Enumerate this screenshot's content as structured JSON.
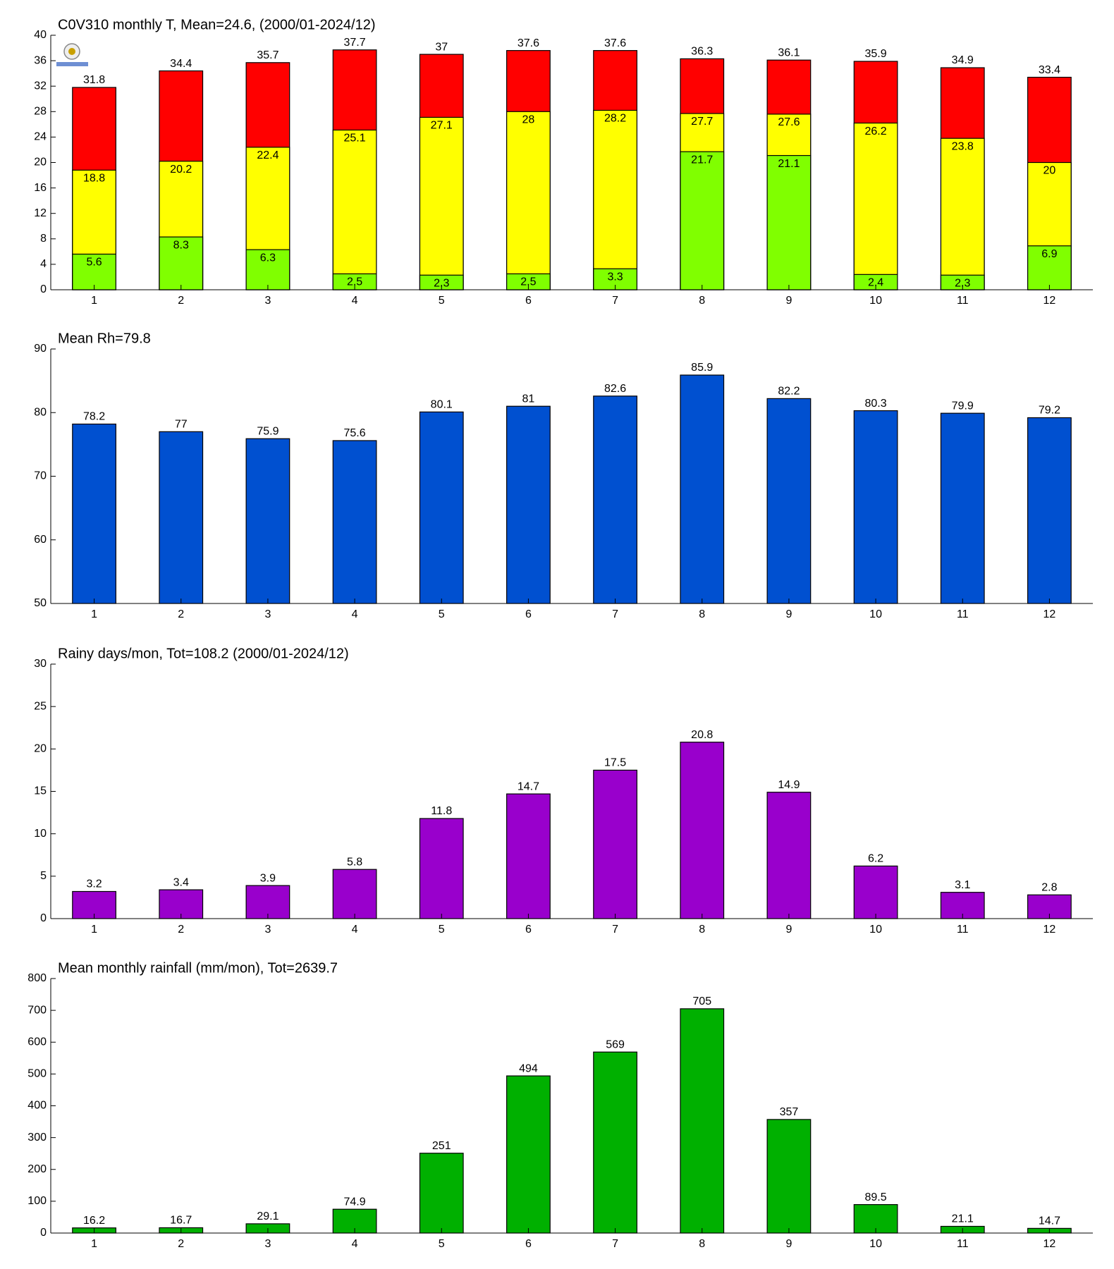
{
  "chart_data": [
    {
      "type": "bar",
      "barmode": "overlay",
      "title": "C0V310 monthly T, Mean=24.6, (2000/01-2024/12)",
      "categories": [
        "1",
        "2",
        "3",
        "4",
        "5",
        "6",
        "7",
        "8",
        "9",
        "10",
        "11",
        "12"
      ],
      "series": [
        {
          "color": "#ff0000",
          "values": [
            31.8,
            34.4,
            35.7,
            37.7,
            37,
            37.6,
            37.6,
            36.3,
            36.1,
            35.9,
            34.9,
            33.4
          ]
        },
        {
          "color": "#ffff00",
          "values": [
            18.8,
            20.2,
            22.4,
            25.1,
            27.1,
            28,
            28.2,
            27.7,
            27.6,
            26.2,
            23.8,
            20
          ]
        },
        {
          "color": "#80ff00",
          "values": [
            5.6,
            8.3,
            6.3,
            2.5,
            2.3,
            2.5,
            3.3,
            21.7,
            21.1,
            2.4,
            2.3,
            6.9
          ]
        }
      ],
      "ylim": [
        0,
        40
      ],
      "yticks": [
        0,
        4,
        8,
        12,
        16,
        20,
        24,
        28,
        32,
        36,
        40
      ]
    },
    {
      "type": "bar",
      "title": "Mean Rh=79.8",
      "categories": [
        "1",
        "2",
        "3",
        "4",
        "5",
        "6",
        "7",
        "8",
        "9",
        "10",
        "11",
        "12"
      ],
      "series": [
        {
          "color": "#0050d0",
          "values": [
            78.2,
            77,
            75.9,
            75.6,
            80.1,
            81,
            82.6,
            85.9,
            82.2,
            80.3,
            79.9,
            79.2
          ]
        }
      ],
      "ylim": [
        50,
        90
      ],
      "yticks": [
        50,
        60,
        70,
        80,
        90
      ]
    },
    {
      "type": "bar",
      "title": "Rainy days/mon, Tot=108.2 (2000/01-2024/12)",
      "categories": [
        "1",
        "2",
        "3",
        "4",
        "5",
        "6",
        "7",
        "8",
        "9",
        "10",
        "11",
        "12"
      ],
      "series": [
        {
          "color": "#9900cc",
          "values": [
            3.2,
            3.4,
            3.9,
            5.8,
            11.8,
            14.7,
            17.5,
            20.8,
            14.9,
            6.2,
            3.1,
            2.8
          ]
        }
      ],
      "ylim": [
        0,
        30
      ],
      "yticks": [
        0,
        5,
        10,
        15,
        20,
        25,
        30
      ]
    },
    {
      "type": "bar",
      "title": "Mean monthly rainfall (mm/mon), Tot=2639.7",
      "categories": [
        "1",
        "2",
        "3",
        "4",
        "5",
        "6",
        "7",
        "8",
        "9",
        "10",
        "11",
        "12"
      ],
      "series": [
        {
          "color": "#00b000",
          "values": [
            16.2,
            16.7,
            29.1,
            74.9,
            251,
            494,
            569,
            705,
            357,
            89.5,
            21.1,
            14.7
          ]
        }
      ],
      "ylim": [
        0,
        800
      ],
      "yticks": [
        0,
        100,
        200,
        300,
        400,
        500,
        600,
        700,
        800
      ]
    }
  ]
}
